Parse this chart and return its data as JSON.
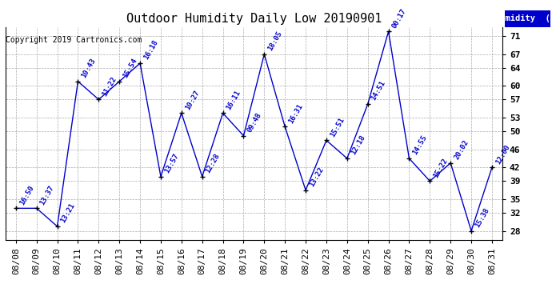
{
  "title": "Outdoor Humidity Daily Low 20190901",
  "copyright": "Copyright 2019 Cartronics.com",
  "legend_label": "Humidity  (%)",
  "dates": [
    "08/08",
    "08/09",
    "08/10",
    "08/11",
    "08/12",
    "08/13",
    "08/14",
    "08/15",
    "08/16",
    "08/17",
    "08/18",
    "08/19",
    "08/20",
    "08/21",
    "08/22",
    "08/23",
    "08/24",
    "08/25",
    "08/26",
    "08/27",
    "08/28",
    "08/29",
    "08/30",
    "08/31"
  ],
  "values": [
    33,
    33,
    29,
    61,
    57,
    61,
    65,
    40,
    54,
    40,
    54,
    49,
    67,
    51,
    37,
    48,
    44,
    56,
    72,
    44,
    39,
    43,
    28,
    42
  ],
  "times": [
    "16:50",
    "13:37",
    "13:21",
    "10:43",
    "11:22",
    "15:54",
    "16:18",
    "13:57",
    "10:27",
    "12:28",
    "16:11",
    "09:48",
    "18:05",
    "16:31",
    "13:22",
    "15:51",
    "12:18",
    "14:51",
    "00:17",
    "14:55",
    "15:22",
    "20:02",
    "15:38",
    "12:00"
  ],
  "ylim": [
    26,
    73
  ],
  "yticks": [
    28,
    32,
    35,
    39,
    42,
    46,
    50,
    53,
    57,
    60,
    64,
    67,
    71
  ],
  "line_color": "#0000CC",
  "marker_color": "black",
  "label_color": "#0000CC",
  "bg_color": "#FFFFFF",
  "grid_color": "#AAAAAA",
  "title_fontsize": 11,
  "copyright_fontsize": 7,
  "tick_fontsize": 8,
  "label_fontsize": 6.5,
  "legend_bg": "#0000CC",
  "legend_fg": "#FFFFFF"
}
